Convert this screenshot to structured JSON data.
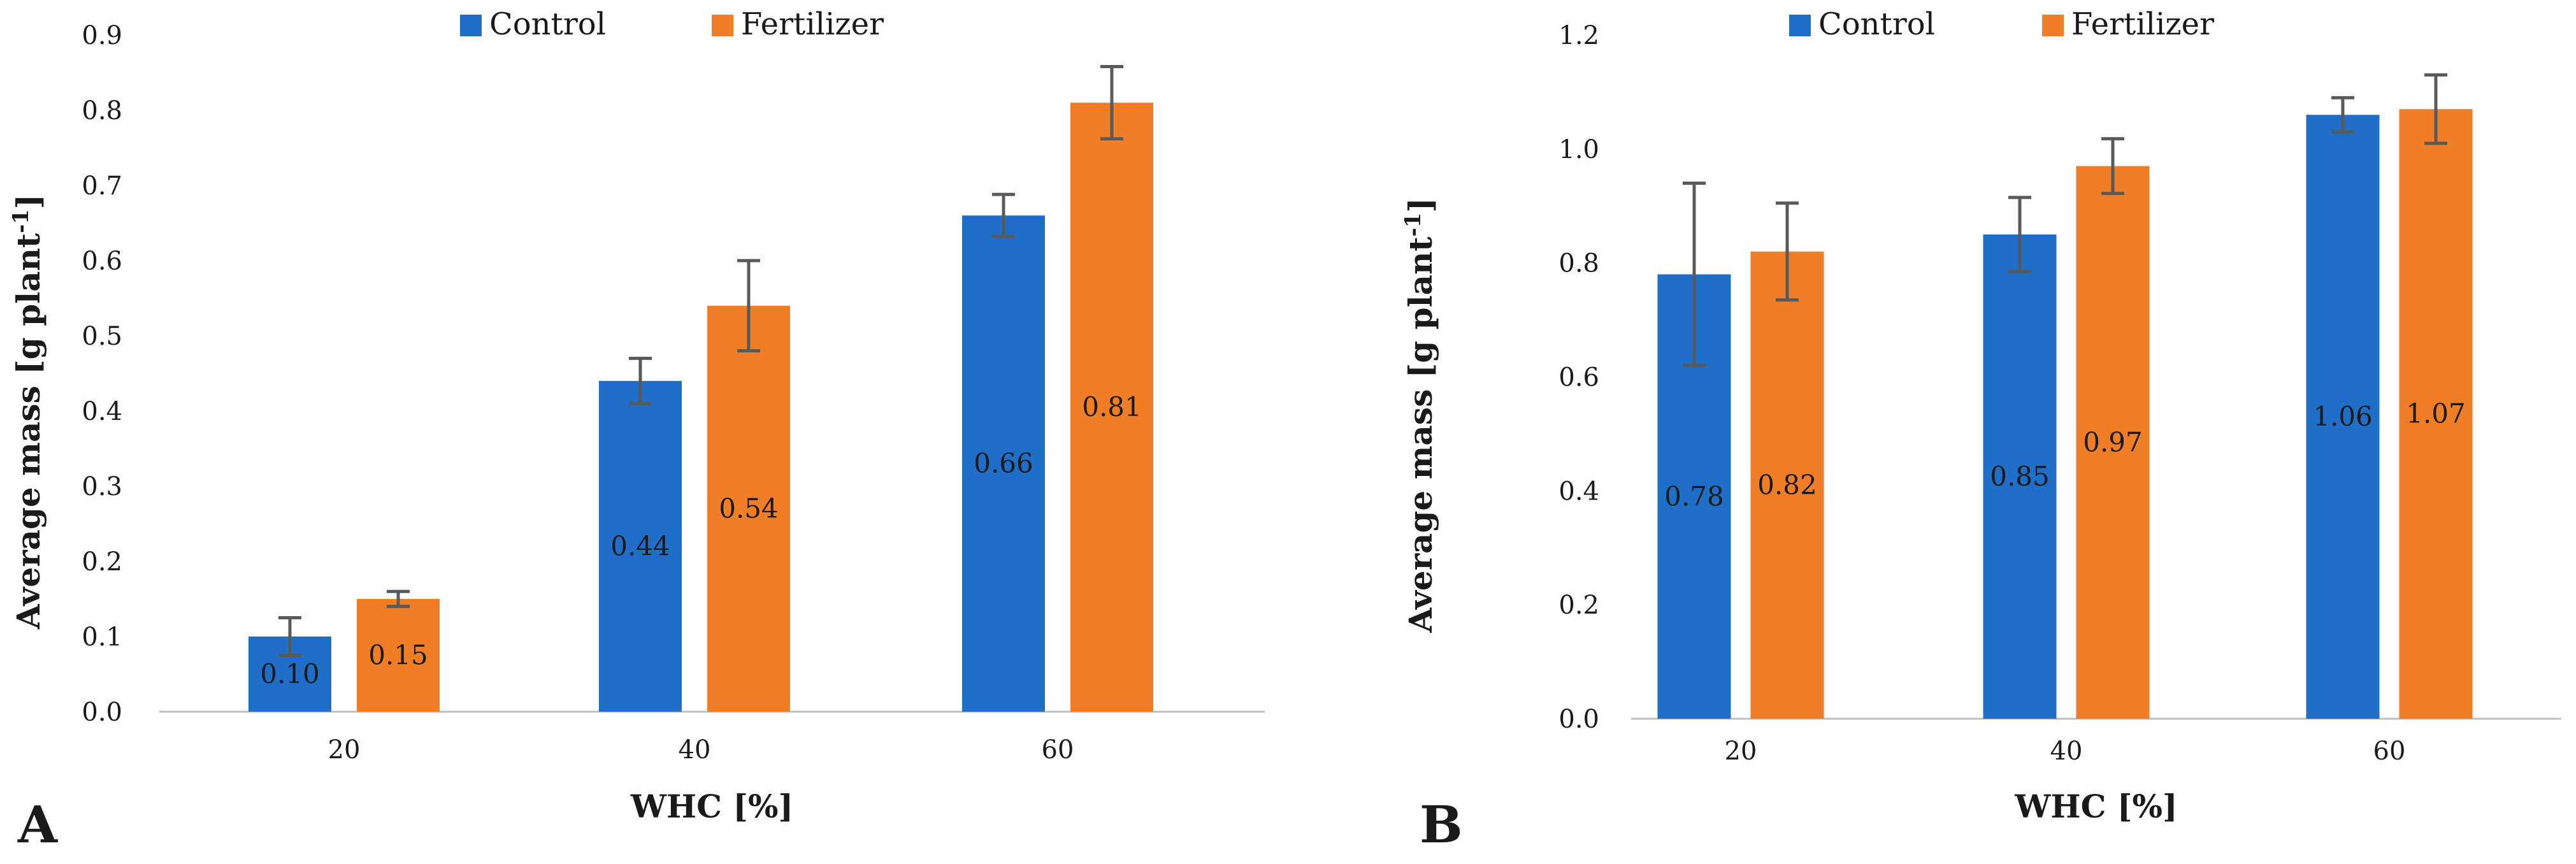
{
  "chart_data": [
    {
      "panel_label": "A",
      "type": "bar",
      "categories": [
        "20",
        "40",
        "60"
      ],
      "series": [
        {
          "name": "Control",
          "color": "#1F6FC9",
          "values": [
            0.1,
            0.44,
            0.66
          ],
          "errors": [
            0.025,
            0.03,
            0.028
          ],
          "labels": [
            "0.10",
            "0.44",
            "0.66"
          ]
        },
        {
          "name": "Fertilizer",
          "color": "#F07E26",
          "values": [
            0.15,
            0.54,
            0.81
          ],
          "errors": [
            0.01,
            0.06,
            0.048
          ],
          "labels": [
            "0.15",
            "0.54",
            "0.81"
          ]
        }
      ],
      "xlabel": "WHC [%]",
      "ylabel_main": "Average mass [g plant",
      "ylabel_sup": "-1",
      "ylabel_end": "]",
      "ylim": [
        0,
        0.9
      ],
      "yticks": [
        "0.0",
        "0.1",
        "0.2",
        "0.3",
        "0.4",
        "0.5",
        "0.6",
        "0.7",
        "0.8",
        "0.9"
      ],
      "legend": [
        "Control",
        "Fertilizer"
      ],
      "legend_position": "top"
    },
    {
      "panel_label": "B",
      "type": "bar",
      "categories": [
        "20",
        "40",
        "60"
      ],
      "series": [
        {
          "name": "Control",
          "color": "#1F6FC9",
          "values": [
            0.78,
            0.85,
            1.06
          ],
          "errors": [
            0.16,
            0.065,
            0.03
          ],
          "labels": [
            "0.78",
            "0.85",
            "1.06"
          ]
        },
        {
          "name": "Fertilizer",
          "color": "#F07E26",
          "values": [
            0.82,
            0.97,
            1.07
          ],
          "errors": [
            0.085,
            0.048,
            0.06
          ],
          "labels": [
            "0.82",
            "0.97",
            "1.07"
          ]
        }
      ],
      "xlabel": "WHC [%]",
      "ylabel_main": "Average mass [g plant",
      "ylabel_sup": "-1",
      "ylabel_end": "]",
      "ylim": [
        0,
        1.2
      ],
      "yticks": [
        "0.0",
        "0.2",
        "0.4",
        "0.6",
        "0.8",
        "1.0",
        "1.2"
      ],
      "legend": [
        "Control",
        "Fertilizer"
      ],
      "legend_position": "top"
    }
  ]
}
